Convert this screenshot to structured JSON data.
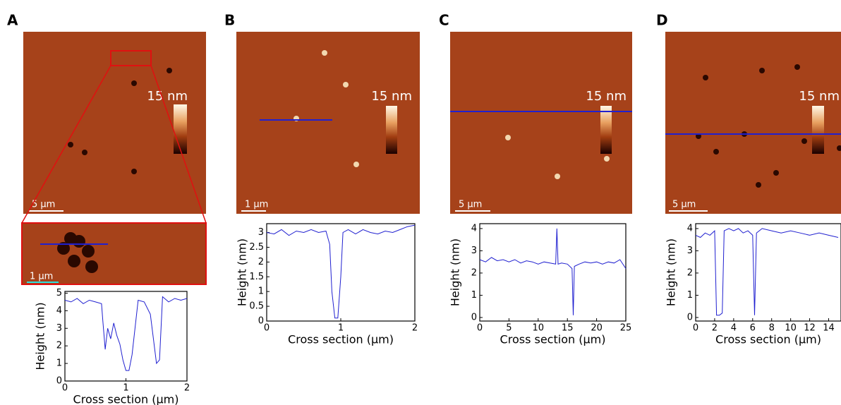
{
  "chart_data": [
    {
      "type": "line",
      "panel": "A",
      "scale_bar": "5 µm",
      "inset_scale_bar": "1 µm",
      "colorbar_label": "15 nm",
      "x_label": "Cross section (µm)",
      "y_label": "Height (nm)",
      "color": "#2020d0",
      "x": [
        0,
        0.1,
        0.2,
        0.3,
        0.4,
        0.5,
        0.6,
        0.62,
        0.66,
        0.7,
        0.75,
        0.8,
        0.85,
        0.9,
        0.95,
        1.0,
        1.05,
        1.1,
        1.2,
        1.3,
        1.4,
        1.5,
        1.55,
        1.6,
        1.7,
        1.8,
        1.9,
        2.0
      ],
      "values": [
        4.6,
        4.5,
        4.7,
        4.4,
        4.6,
        4.5,
        4.4,
        3.5,
        1.8,
        3.0,
        2.4,
        3.3,
        2.6,
        2.1,
        1.2,
        0.6,
        0.6,
        1.5,
        4.6,
        4.5,
        3.8,
        1.0,
        1.2,
        4.8,
        4.5,
        4.7,
        4.6,
        4.7
      ],
      "xlim": [
        0,
        2
      ],
      "ylim": [
        0,
        5.1
      ],
      "xticks": [
        0,
        1,
        2
      ],
      "yticks": [
        0,
        1,
        2,
        3,
        4,
        5
      ]
    },
    {
      "type": "line",
      "panel": "B",
      "scale_bar": "1 µm",
      "colorbar_label": "15 nm",
      "x_label": "Cross section (µm)",
      "y_label": "Height (nm)",
      "color": "#2020d0",
      "x": [
        0,
        0.1,
        0.2,
        0.3,
        0.4,
        0.5,
        0.6,
        0.7,
        0.8,
        0.85,
        0.88,
        0.92,
        0.96,
        1.0,
        1.03,
        1.1,
        1.2,
        1.3,
        1.4,
        1.5,
        1.6,
        1.7,
        1.8,
        1.9,
        2.0
      ],
      "values": [
        3.0,
        2.95,
        3.1,
        2.9,
        3.05,
        3.0,
        3.1,
        3.0,
        3.05,
        2.6,
        1.0,
        0.1,
        0.1,
        1.5,
        3.0,
        3.1,
        2.95,
        3.1,
        3.0,
        2.95,
        3.05,
        3.0,
        3.1,
        3.2,
        3.25
      ],
      "xlim": [
        0,
        2
      ],
      "ylim": [
        0,
        3.3
      ],
      "xticks": [
        0,
        1,
        2
      ],
      "yticks": [
        0,
        0.5,
        1,
        1.5,
        2,
        2.5,
        3
      ]
    },
    {
      "type": "line",
      "panel": "C",
      "scale_bar": "5 µm",
      "colorbar_label": "15 nm",
      "x_label": "Cross section (µm)",
      "y_label": "Height (nm)",
      "color": "#2020d0",
      "x": [
        0,
        1,
        2,
        3,
        4,
        5,
        6,
        7,
        8,
        9,
        10,
        11,
        12,
        13,
        13.2,
        13.4,
        14,
        15,
        15.8,
        16,
        16.2,
        17,
        18,
        19,
        20,
        21,
        22,
        23,
        24,
        25
      ],
      "values": [
        2.6,
        2.5,
        2.7,
        2.55,
        2.6,
        2.5,
        2.6,
        2.45,
        2.55,
        2.5,
        2.4,
        2.5,
        2.45,
        2.4,
        4.0,
        2.4,
        2.45,
        2.4,
        2.2,
        0.1,
        2.3,
        2.4,
        2.5,
        2.45,
        2.5,
        2.4,
        2.5,
        2.45,
        2.6,
        2.2
      ],
      "xlim": [
        0,
        25
      ],
      "ylim": [
        -0.16,
        4.22
      ],
      "xticks": [
        0,
        5,
        10,
        15,
        20,
        25
      ],
      "yticks": [
        0,
        1,
        2,
        3,
        4
      ]
    },
    {
      "type": "line",
      "panel": "D",
      "scale_bar": "5 µm",
      "colorbar_label": "15 nm",
      "x_label": "Cross section (µm)",
      "y_label": "Height (nm)",
      "color": "#2020d0",
      "x": [
        0,
        0.5,
        1,
        1.5,
        2,
        2.2,
        2.5,
        2.8,
        3.0,
        3.5,
        4,
        4.5,
        5,
        5.5,
        6,
        6.2,
        6.4,
        7,
        8,
        9,
        10,
        11,
        12,
        13,
        14,
        15
      ],
      "values": [
        3.7,
        3.6,
        3.8,
        3.7,
        3.9,
        0.1,
        0.1,
        0.2,
        3.9,
        4.0,
        3.9,
        4.0,
        3.8,
        3.9,
        3.7,
        0.1,
        3.8,
        4.0,
        3.9,
        3.8,
        3.9,
        3.8,
        3.7,
        3.8,
        3.7,
        3.6
      ],
      "xlim": [
        0,
        15.3
      ],
      "ylim": [
        -0.16,
        4.22
      ],
      "xticks": [
        0,
        2,
        4,
        6,
        8,
        10,
        12,
        14
      ],
      "yticks": [
        0,
        1,
        2,
        3,
        4
      ]
    }
  ]
}
